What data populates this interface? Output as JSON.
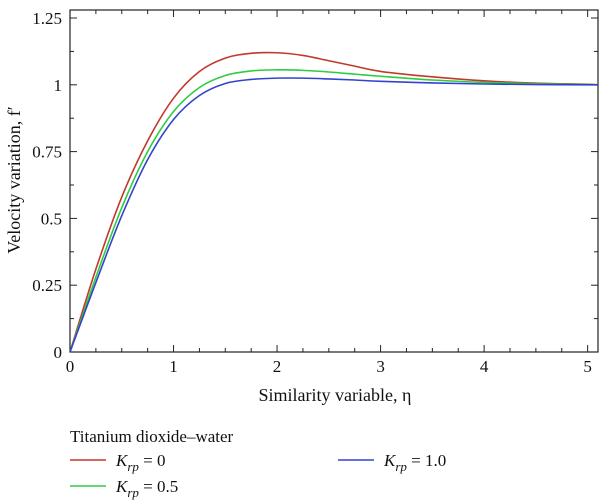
{
  "chart_data": {
    "type": "line",
    "xlabel": "Similarity variable, η",
    "ylabel": "Velocity variation, f′",
    "xlim": [
      0,
      5.1
    ],
    "ylim": [
      0,
      1.28
    ],
    "xticks": [
      0,
      1,
      2,
      3,
      4,
      5
    ],
    "xtick_labels": [
      "0",
      "1",
      "2",
      "3",
      "4",
      "5"
    ],
    "yticks": [
      0,
      0.25,
      0.5,
      0.75,
      1,
      1.25
    ],
    "ytick_labels": [
      "0",
      "0.25",
      "0.5",
      "0.75",
      "1",
      "1.25"
    ],
    "grid": false,
    "legend_title": "Titanium dioxide–water",
    "legend_position": "bottom",
    "series": [
      {
        "name": "K_rp = 0",
        "color": "#c0392b",
        "x": [
          0,
          0.25,
          0.5,
          0.75,
          1.0,
          1.25,
          1.5,
          1.75,
          2.0,
          2.25,
          2.5,
          2.75,
          3.0,
          3.5,
          4.0,
          4.5,
          5.0,
          5.1
        ],
        "y": [
          0,
          0.31,
          0.58,
          0.79,
          0.95,
          1.05,
          1.1,
          1.118,
          1.12,
          1.11,
          1.09,
          1.07,
          1.05,
          1.03,
          1.015,
          1.006,
          1.002,
          1.0
        ]
      },
      {
        "name": "K_rp = 0.5",
        "color": "#2ecc40",
        "x": [
          0,
          0.25,
          0.5,
          0.75,
          1.0,
          1.25,
          1.5,
          1.75,
          2.0,
          2.25,
          2.5,
          2.75,
          3.0,
          3.5,
          4.0,
          4.5,
          5.0,
          5.1
        ],
        "y": [
          0,
          0.28,
          0.54,
          0.75,
          0.9,
          0.99,
          1.035,
          1.052,
          1.056,
          1.054,
          1.048,
          1.04,
          1.032,
          1.018,
          1.009,
          1.004,
          1.001,
          1.0
        ]
      },
      {
        "name": "K_rp = 1.0",
        "color": "#3344cc",
        "x": [
          0,
          0.25,
          0.5,
          0.75,
          1.0,
          1.25,
          1.5,
          1.75,
          2.0,
          2.25,
          2.5,
          2.75,
          3.0,
          3.5,
          4.0,
          4.5,
          5.0,
          5.1
        ],
        "y": [
          0,
          0.26,
          0.51,
          0.72,
          0.87,
          0.96,
          1.005,
          1.02,
          1.025,
          1.025,
          1.022,
          1.018,
          1.013,
          1.007,
          1.003,
          1.001,
          1.0,
          1.0
        ]
      }
    ]
  },
  "legend": {
    "title": "Titanium dioxide–water",
    "items": [
      {
        "symbol": "K",
        "subscript": "rp",
        "value": " = 0",
        "color": "#c0392b"
      },
      {
        "symbol": "K",
        "subscript": "rp",
        "value": " = 0.5",
        "color": "#2ecc40"
      },
      {
        "symbol": "K",
        "subscript": "rp",
        "value": " = 1.0",
        "color": "#3344cc"
      }
    ]
  }
}
